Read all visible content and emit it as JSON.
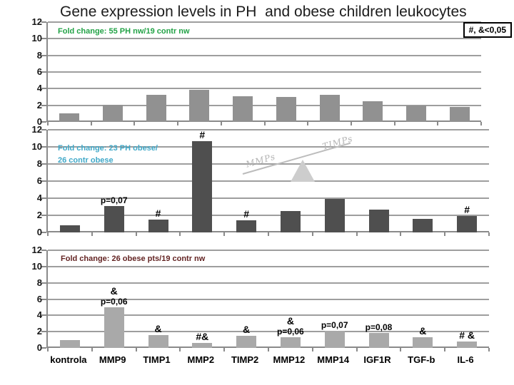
{
  "title": "Gene expression levels in PH  and obese children leukocytes",
  "significance_note": "#, &<0,05",
  "axis": {
    "y_ticks": [
      12,
      10,
      8,
      6,
      4,
      2,
      0
    ],
    "ylim": [
      0,
      12
    ],
    "grid": "horizontal"
  },
  "categories": [
    "kontrola",
    "MMP9",
    "TIMP1",
    "MMP2",
    "TIMP2",
    "MMP12",
    "MMP14",
    "IGF1R",
    "TGF-b",
    "IL-6"
  ],
  "chart_data": [
    {
      "type": "bar",
      "title": "Fold change: 55 PH nw/19 contr nw",
      "subtitle_color": "#22a246",
      "bar_color": "#919191",
      "categories": [
        "kontrola",
        "MMP9",
        "TIMP1",
        "MMP2",
        "TIMP2",
        "MMP12",
        "MMP14",
        "IGF1R",
        "TGF-b",
        "IL-6"
      ],
      "values": [
        1.0,
        2.1,
        3.3,
        3.9,
        3.1,
        3.0,
        3.3,
        2.5,
        2.0,
        1.8
      ],
      "ylim": [
        0,
        12
      ],
      "annotations": []
    },
    {
      "type": "bar",
      "title": "Fold change: 23 PH obese/",
      "title_line2": "26 contr obese",
      "subtitle_color": "#3fa8c8",
      "bar_color": "#4f4f4f",
      "categories": [
        "kontrola",
        "MMP9",
        "TIMP1",
        "MMP2",
        "TIMP2",
        "MMP12",
        "MMP14",
        "IGF1R",
        "TGF-b",
        "IL-6"
      ],
      "values": [
        0.8,
        3.1,
        1.5,
        10.7,
        1.4,
        2.5,
        3.9,
        2.7,
        1.6,
        1.9
      ],
      "ylim": [
        0,
        12
      ],
      "annotations": [
        {
          "index": 1,
          "p": "p=0,07"
        },
        {
          "index": 2,
          "sym": "#"
        },
        {
          "index": 3,
          "sym": "#"
        },
        {
          "index": 4,
          "sym": "#"
        },
        {
          "index": 9,
          "sym": "#"
        }
      ],
      "decor": {
        "type": "seesaw",
        "left_label": "MMPs",
        "right_label": "TIMPs"
      }
    },
    {
      "type": "bar",
      "title": "Fold change: 26 obese pts/19 contr nw",
      "subtitle_color": "#632423",
      "bar_color": "#a9a9a9",
      "categories": [
        "kontrola",
        "MMP9",
        "TIMP1",
        "MMP2",
        "TIMP2",
        "MMP12",
        "MMP14",
        "IGF1R",
        "TGF-b",
        "IL-6"
      ],
      "values": [
        1.0,
        5.0,
        1.6,
        0.6,
        1.5,
        1.3,
        2.1,
        1.8,
        1.3,
        0.8
      ],
      "ylim": [
        0,
        12
      ],
      "annotations": [
        {
          "index": 1,
          "sym": "&",
          "p": "p=0,06"
        },
        {
          "index": 2,
          "sym": "&"
        },
        {
          "index": 3,
          "sym": "#&"
        },
        {
          "index": 4,
          "sym": "&"
        },
        {
          "index": 5,
          "sym": "&",
          "p": "p=0,06"
        },
        {
          "index": 6,
          "p": "p=0,07"
        },
        {
          "index": 7,
          "p": "p=0,08"
        },
        {
          "index": 8,
          "sym": "&"
        },
        {
          "index": 9,
          "sym": "# &"
        }
      ]
    }
  ]
}
